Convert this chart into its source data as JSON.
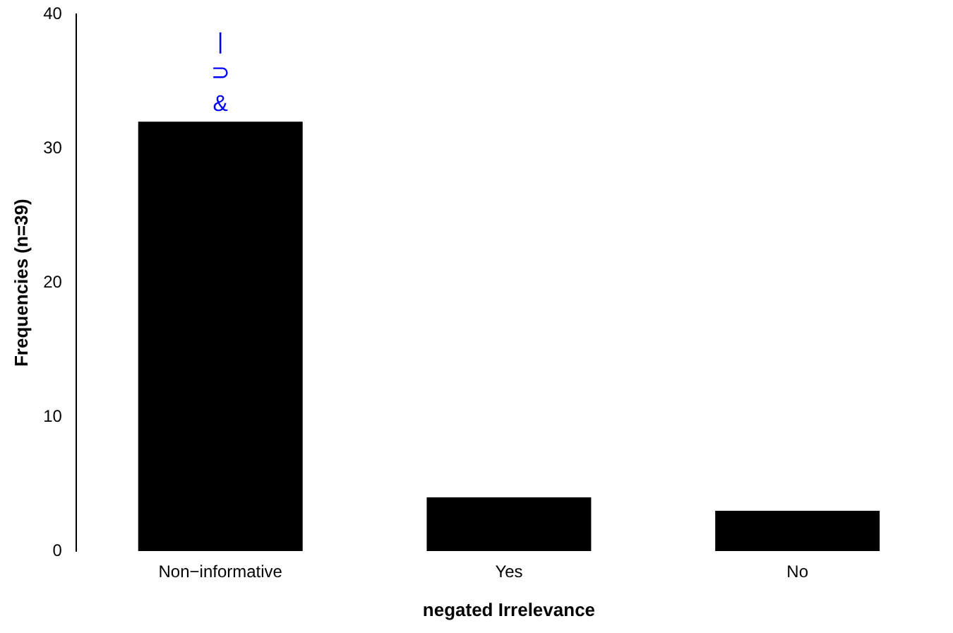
{
  "chart_data": {
    "type": "bar",
    "xlabel": "negated Irrelevance",
    "ylabel": "Frequencies (n=39)",
    "categories": [
      "Non−informative",
      "Yes",
      "No"
    ],
    "values": [
      32,
      4,
      3
    ],
    "color": "#000000",
    "ylim": [
      0,
      40
    ],
    "yticks": [
      0,
      10,
      20,
      30,
      40
    ],
    "grid": false,
    "legend": false,
    "annotations": [
      "|",
      "⊃",
      "&"
    ]
  }
}
